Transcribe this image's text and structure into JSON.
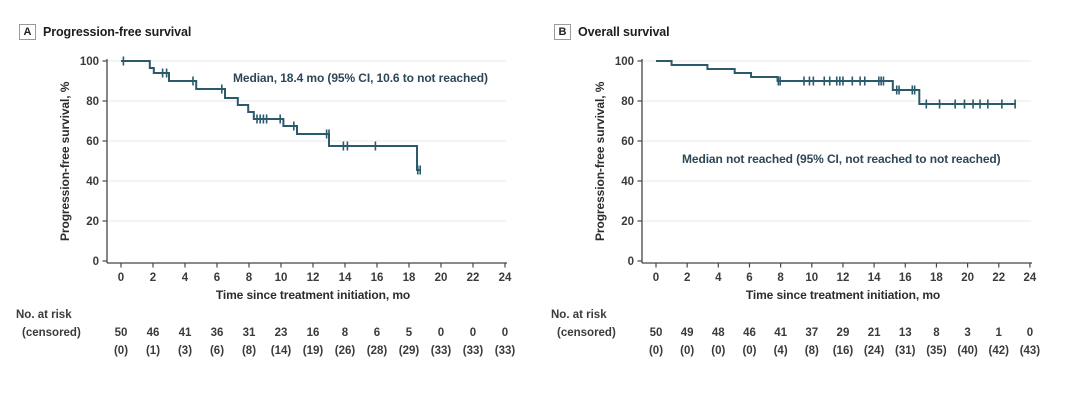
{
  "figure": {
    "background_color": "#ffffff",
    "curve_color": "#2b5a6b",
    "text_color": "#3b3b3b",
    "gridline_color": "#eeeeee",
    "axis_color": "#454545",
    "panels": [
      {
        "label": "A",
        "title": "Progression-free survival",
        "annotation": "Median, 18.4 mo (95% CI, 10.6 to not reached)",
        "y_axis_label": "Progression-free survival, %",
        "x_axis_label": "Time since treatment initiation, mo",
        "risk_label_line1": "No. at risk",
        "risk_label_line2": "(censored)"
      },
      {
        "label": "B",
        "title": "Overall survival",
        "annotation": "Median not reached (95% CI, not reached to not reached)",
        "y_axis_label": "Progression-free survival, %",
        "x_axis_label": "Time since treatment initiation, mo",
        "risk_label_line1": "No. at risk",
        "risk_label_line2": "(censored)"
      }
    ]
  },
  "chart_data": [
    {
      "type": "line",
      "subtype": "kaplan-meier-step",
      "title": "Progression-free survival",
      "xlabel": "Time since treatment initiation, mo",
      "ylabel": "Progression-free survival, %",
      "annotation": "Median, 18.4 mo (95% CI, 10.6 to not reached)",
      "median_months": "18.4",
      "xlim": [
        0,
        24
      ],
      "ylim": [
        0,
        100
      ],
      "xticks": [
        0,
        2,
        4,
        6,
        8,
        10,
        12,
        14,
        16,
        18,
        20,
        22,
        24
      ],
      "yticks": [
        0,
        20,
        40,
        60,
        80,
        100
      ],
      "gridlines_at": [
        20,
        40,
        60,
        80,
        100
      ],
      "km_steps": [
        [
          0,
          100
        ],
        [
          1.8,
          96.5
        ],
        [
          2.05,
          94
        ],
        [
          3.0,
          90
        ],
        [
          4.7,
          86
        ],
        [
          6.5,
          81.5
        ],
        [
          7.3,
          78
        ],
        [
          7.95,
          74.5
        ],
        [
          8.3,
          71
        ],
        [
          10.15,
          67.5
        ],
        [
          11.0,
          63.5
        ],
        [
          13.0,
          57.5
        ],
        [
          18.5,
          45.5
        ]
      ],
      "curve_end_month": 18.75,
      "censor_marks": [
        [
          0.15,
          100
        ],
        [
          2.6,
          94
        ],
        [
          2.85,
          94
        ],
        [
          4.5,
          90
        ],
        [
          6.3,
          86
        ],
        [
          8.5,
          71
        ],
        [
          8.7,
          71
        ],
        [
          8.9,
          71
        ],
        [
          9.1,
          71
        ],
        [
          9.95,
          71
        ],
        [
          10.8,
          67.5
        ],
        [
          12.85,
          63.5
        ],
        [
          13.0,
          63.5
        ],
        [
          13.9,
          57.5
        ],
        [
          14.15,
          57.5
        ],
        [
          15.9,
          57.5
        ],
        [
          18.55,
          45.5
        ],
        [
          18.7,
          45.5
        ]
      ],
      "at_risk": {
        "times": [
          0,
          2,
          4,
          6,
          8,
          10,
          12,
          14,
          16,
          18,
          20,
          22,
          24
        ],
        "n": [
          50,
          46,
          41,
          36,
          31,
          23,
          16,
          8,
          6,
          5,
          0,
          0,
          0
        ],
        "censored": [
          0,
          1,
          3,
          6,
          8,
          14,
          19,
          26,
          28,
          29,
          33,
          33,
          33
        ]
      }
    },
    {
      "type": "line",
      "subtype": "kaplan-meier-step",
      "title": "Overall survival",
      "xlabel": "Time since treatment initiation, mo",
      "ylabel": "Progression-free survival, %",
      "annotation": "Median not reached (95% CI, not reached to not reached)",
      "median_months": "not reached",
      "xlim": [
        0,
        24
      ],
      "ylim": [
        0,
        100
      ],
      "xticks": [
        0,
        2,
        4,
        6,
        8,
        10,
        12,
        14,
        16,
        18,
        20,
        22,
        24
      ],
      "yticks": [
        0,
        20,
        40,
        60,
        80,
        100
      ],
      "gridlines_at": [
        20,
        40,
        60,
        80,
        100
      ],
      "km_steps": [
        [
          0,
          100
        ],
        [
          1.0,
          98
        ],
        [
          3.3,
          96
        ],
        [
          5.05,
          94
        ],
        [
          6.1,
          92
        ],
        [
          7.8,
          90
        ],
        [
          15.2,
          85.5
        ],
        [
          16.9,
          78.5
        ]
      ],
      "curve_end_month": 23.1,
      "censor_marks": [
        [
          7.85,
          90
        ],
        [
          7.97,
          90
        ],
        [
          9.5,
          90
        ],
        [
          9.85,
          90
        ],
        [
          10.1,
          90
        ],
        [
          10.8,
          90
        ],
        [
          11.15,
          90
        ],
        [
          11.6,
          90
        ],
        [
          11.8,
          90
        ],
        [
          12.0,
          90
        ],
        [
          12.6,
          90
        ],
        [
          13.1,
          90
        ],
        [
          13.4,
          90
        ],
        [
          14.3,
          90
        ],
        [
          14.45,
          90
        ],
        [
          14.6,
          90
        ],
        [
          15.45,
          85.5
        ],
        [
          15.6,
          85.5
        ],
        [
          16.45,
          85.5
        ],
        [
          16.6,
          85.5
        ],
        [
          17.35,
          78.5
        ],
        [
          18.2,
          78.5
        ],
        [
          19.2,
          78.5
        ],
        [
          19.8,
          78.5
        ],
        [
          20.35,
          78.5
        ],
        [
          20.8,
          78.5
        ],
        [
          21.3,
          78.5
        ],
        [
          22.2,
          78.5
        ],
        [
          23.05,
          78.5
        ]
      ],
      "at_risk": {
        "times": [
          0,
          2,
          4,
          6,
          8,
          10,
          12,
          14,
          16,
          18,
          20,
          22,
          24
        ],
        "n": [
          50,
          49,
          48,
          46,
          41,
          37,
          29,
          21,
          13,
          8,
          3,
          1,
          0
        ],
        "censored": [
          0,
          0,
          0,
          0,
          4,
          8,
          16,
          24,
          31,
          35,
          40,
          42,
          43
        ]
      }
    }
  ]
}
